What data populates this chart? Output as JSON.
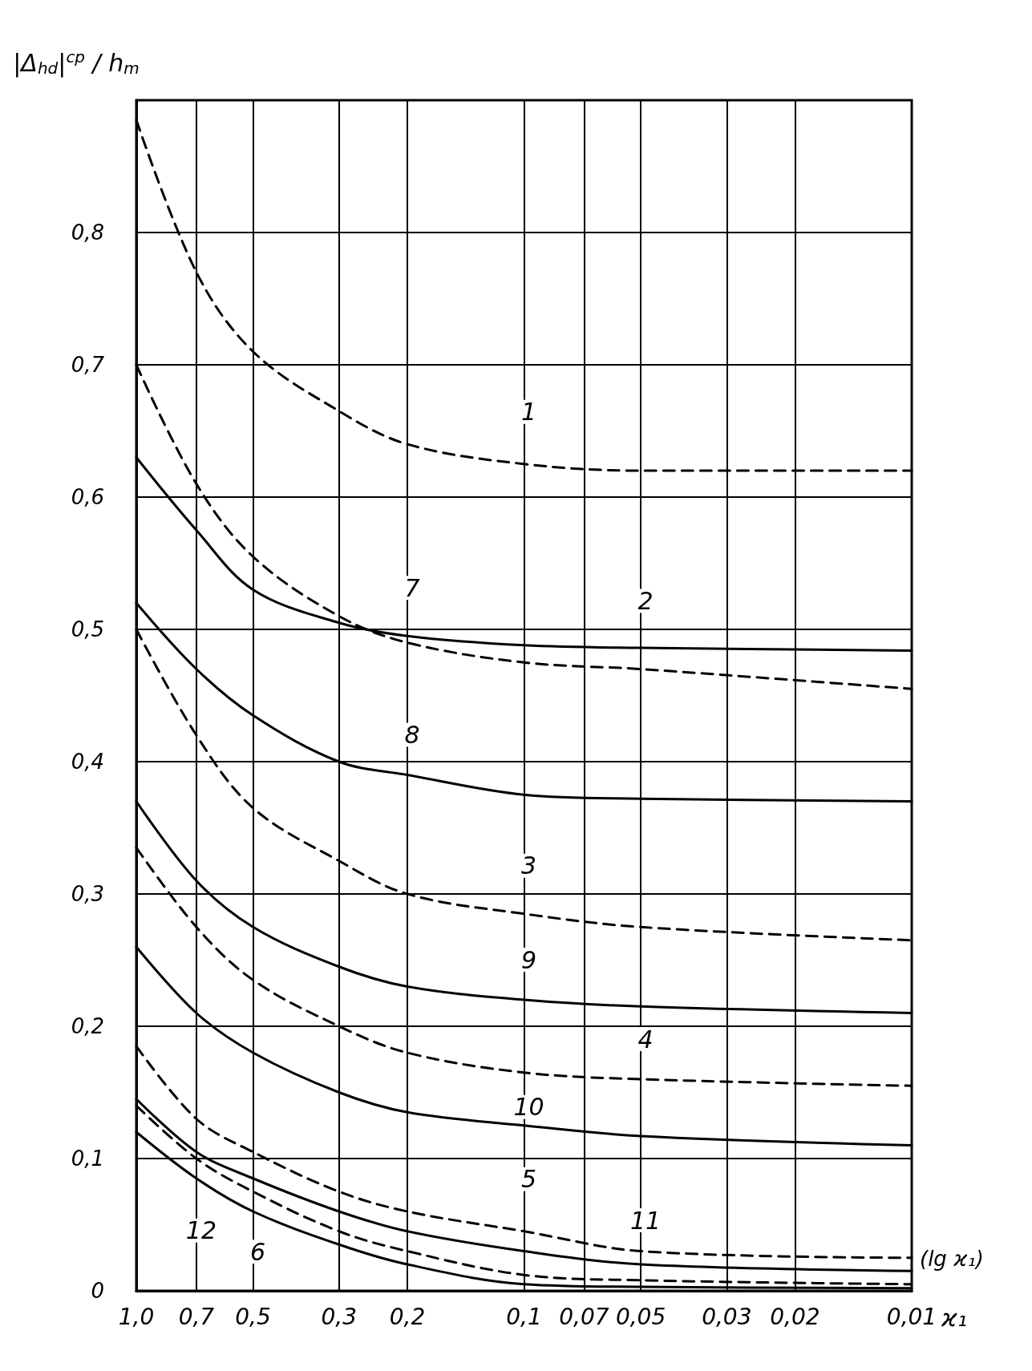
{
  "chart_data": {
    "type": "line",
    "ylabel": "|Δ$_{hd}$|$^{ср}$ / h$_{m}$",
    "xlabel": "ϰ₁",
    "log": "x",
    "grid": true,
    "marker": "none",
    "x": [
      1.0,
      0.7,
      0.5,
      0.3,
      0.2,
      0.1,
      0.05,
      0.01
    ],
    "xlim": [
      1.0,
      0.01
    ],
    "xticks": [
      {
        "value": 1.0,
        "label": "1,0"
      },
      {
        "value": 0.7,
        "label": "0,7"
      },
      {
        "value": 0.5,
        "label": "0,5"
      },
      {
        "value": 0.3,
        "label": "0,3"
      },
      {
        "value": 0.2,
        "label": "0,2"
      },
      {
        "value": 0.1,
        "label": "0,1"
      },
      {
        "value": 0.07,
        "label": "0,07"
      },
      {
        "value": 0.05,
        "label": "0,05"
      },
      {
        "value": 0.03,
        "label": "0,03"
      },
      {
        "value": 0.02,
        "label": "0,02"
      },
      {
        "value": 0.01,
        "label": "0,01"
      }
    ],
    "ylim": [
      0,
      0.9
    ],
    "yticks": [
      0,
      {
        "value": 0.1,
        "label": "0,1"
      },
      {
        "value": 0.2,
        "label": "0,2"
      },
      {
        "value": 0.3,
        "label": "0,3"
      },
      {
        "value": 0.4,
        "label": "0,4"
      },
      {
        "value": 0.5,
        "label": "0,5"
      },
      {
        "value": 0.6,
        "label": "0,6"
      },
      {
        "value": 0.7,
        "label": "0,7"
      },
      {
        "value": 0.8,
        "label": "0,8"
      }
    ],
    "series": [
      {
        "color": "#000000",
        "line_style": "dashed",
        "values": [
          0.885,
          0.77,
          0.71,
          0.665,
          0.64,
          0.625,
          0.62,
          0.62
        ]
      },
      {
        "color": "#000000",
        "line_style": "dashed",
        "values": [
          0.7,
          0.61,
          0.555,
          0.51,
          0.49,
          0.475,
          0.47,
          0.455
        ]
      },
      {
        "color": "#000000",
        "line_style": "dashed",
        "values": [
          0.5,
          0.42,
          0.365,
          0.325,
          0.3,
          0.285,
          0.275,
          0.265
        ]
      },
      {
        "color": "#000000",
        "line_style": "dashed",
        "values": [
          0.335,
          0.275,
          0.235,
          0.2,
          0.18,
          0.165,
          0.16,
          0.155
        ]
      },
      {
        "color": "#000000",
        "line_style": "dashed",
        "values": [
          0.185,
          0.13,
          0.105,
          0.075,
          0.06,
          0.045,
          0.03,
          0.025
        ]
      },
      {
        "color": "#000000",
        "line_style": "dashed",
        "values": [
          0.14,
          0.1,
          0.075,
          0.045,
          0.03,
          0.012,
          0.008,
          0.005
        ]
      },
      {
        "color": "#000000",
        "line_style": "solid",
        "values": [
          0.63,
          0.575,
          0.53,
          0.505,
          0.495,
          0.488,
          0.486,
          0.484
        ]
      },
      {
        "color": "#000000",
        "line_style": "solid",
        "values": [
          0.52,
          0.47,
          0.435,
          0.4,
          0.39,
          0.375,
          0.372,
          0.37
        ]
      },
      {
        "color": "#000000",
        "line_style": "solid",
        "values": [
          0.37,
          0.31,
          0.275,
          0.245,
          0.23,
          0.22,
          0.215,
          0.21
        ]
      },
      {
        "color": "#000000",
        "line_style": "solid",
        "values": [
          0.26,
          0.21,
          0.18,
          0.15,
          0.135,
          0.125,
          0.117,
          0.11
        ]
      },
      {
        "color": "#000000",
        "line_style": "solid",
        "values": [
          0.145,
          0.105,
          0.085,
          0.06,
          0.045,
          0.03,
          0.02,
          0.015
        ]
      },
      {
        "color": "#000000",
        "line_style": "solid",
        "values": [
          0.12,
          0.085,
          0.06,
          0.035,
          0.02,
          0.005,
          0.003,
          0.002
        ]
      }
    ],
    "annotations": [
      {
        "text": "1",
        "x": 0.1,
        "y": 0.625
      },
      {
        "text": "2",
        "x": 0.05,
        "y": 0.47
      },
      {
        "text": "3",
        "x": 0.1,
        "y": 0.285
      },
      {
        "text": "4",
        "x": 0.05,
        "y": 0.16
      },
      {
        "text": "5",
        "x": 0.1,
        "y": 0.045
      },
      {
        "text": "6",
        "x": 0.5,
        "y": 0.075
      },
      {
        "text": "7",
        "x": 0.2,
        "y": 0.495
      },
      {
        "text": "8",
        "x": 0.2,
        "y": 0.39
      },
      {
        "text": "9",
        "x": 0.1,
        "y": 0.22
      },
      {
        "text": "10",
        "x": 0.1,
        "y": 0.125
      },
      {
        "text": "11",
        "x": 0.05,
        "y": 0.02
      },
      {
        "text": "12",
        "x": 0.7,
        "y": 0.085
      },
      "(lg ϰ₁)"
    ]
  }
}
